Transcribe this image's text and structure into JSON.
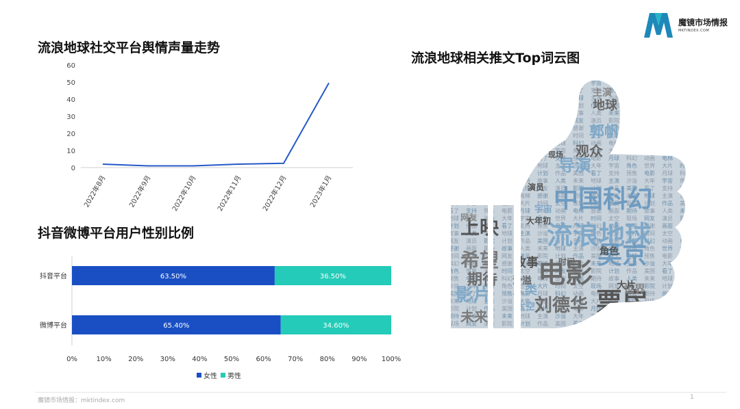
{
  "brand": {
    "name_cn": "魔镜市场情报",
    "name_en": "MKTINDEX.COM",
    "color_a": "#1e88b8",
    "color_b": "#26b5c9"
  },
  "footer": {
    "text": "魔镜市场情报：mktindex.com",
    "page_number": "1"
  },
  "line_chart_title": "流浪地球社交平台舆情声量走势",
  "bar_chart_title": "抖音微博平台用户性别比例",
  "wordcloud_title": "流浪地球相关推文Top词云图",
  "wordcloud": {
    "shape": "thumbs-up",
    "words": [
      "流浪地球",
      "电影",
      "吴京",
      "中国科幻",
      "票房",
      "上映",
      "希望",
      "刘德华",
      "郭帆",
      "导演",
      "观众",
      "影片",
      "期待",
      "故事",
      "人类",
      "未来",
      "地球",
      "主演",
      "沙溢",
      "大年初",
      "宇宙",
      "角色",
      "世界",
      "大片",
      "时间",
      "太空",
      "现场",
      "网友",
      "演员",
      "影院",
      "计划",
      "作品",
      "美国",
      "看了",
      "支持",
      "预售",
      "电影院",
      "月球",
      "科幻片",
      "动画",
      "电梯",
      "感谢",
      "画面"
    ]
  },
  "chart_data": [
    {
      "type": "line",
      "title": "流浪地球社交平台舆情声量走势",
      "categories": [
        "2022年8月",
        "2022年9月",
        "2022年10月",
        "2022年11月",
        "2022年12月",
        "2023年1月"
      ],
      "series": [
        {
          "values": [
            2,
            1,
            1,
            2,
            2.5,
            49.5
          ],
          "color": "#2358c8"
        }
      ],
      "ylim": [
        0,
        60
      ],
      "yticks": [
        0,
        10,
        20,
        30,
        40,
        50,
        60
      ],
      "grid": false
    },
    {
      "type": "bar",
      "orientation": "horizontal",
      "stacked": true,
      "title": "抖音微博平台用户性别比例",
      "categories": [
        "抖音平台",
        "微博平台"
      ],
      "series": [
        {
          "name": "女性",
          "values": [
            63.5,
            65.4
          ],
          "labels": [
            "63.50%",
            "65.40%"
          ],
          "color": "#1a4fc4"
        },
        {
          "name": "男性",
          "values": [
            36.5,
            34.6
          ],
          "labels": [
            "36.50%",
            "34.60%"
          ],
          "color": "#24cbb8"
        }
      ],
      "xlim": [
        0,
        100
      ],
      "xticks": [
        "0%",
        "10%",
        "20%",
        "30%",
        "40%",
        "50%",
        "60%",
        "70%",
        "80%",
        "90%",
        "100%"
      ],
      "legend_position": "bottom"
    }
  ]
}
